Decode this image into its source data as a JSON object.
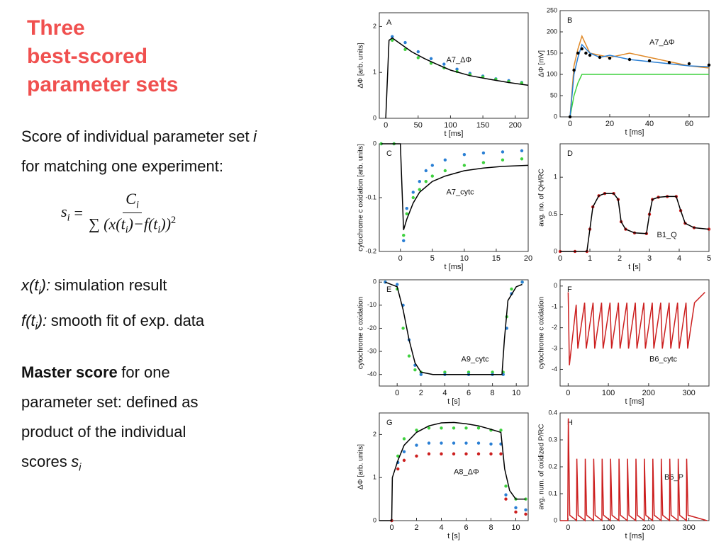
{
  "title_lines": [
    "Three",
    "best-scored",
    "parameter sets"
  ],
  "intro": {
    "line1": "Score of individual parameter set",
    "sym": "i",
    "line2": "for matching one experiment:"
  },
  "formula": {
    "lhs": "s",
    "lhs_sub": "i",
    "eq": "=",
    "num": "C",
    "num_sub": "i",
    "den": [
      "∑ (x(t",
      "i",
      ")−f(t",
      "i",
      "))",
      "2"
    ]
  },
  "defs": [
    {
      "term": "x(t",
      "sub": "i",
      "close": "):",
      "desc": "simulation result"
    },
    {
      "term": "f(t",
      "sub": "i",
      "close": "):",
      "desc": "smooth fit of exp. data"
    }
  ],
  "master": {
    "bold": "Master score",
    "lines": [
      "for one",
      "parameter set: defined as",
      "product of the individual",
      "scores"
    ],
    "sym": "s",
    "sub": "i"
  },
  "chart_data": [
    {
      "type": "line",
      "letter": "A",
      "label": "A7_ΔΦ",
      "xlabel": "t [ms]",
      "ylabel": "ΔΦ [arb. units]",
      "xlim": [
        -10,
        220
      ],
      "xticks": [
        0,
        50,
        100,
        150,
        200
      ],
      "ylim": [
        0,
        2.3
      ],
      "yticks": [
        0,
        1,
        2
      ],
      "series": [
        {
          "color": "#2a7fd4",
          "style": "markers",
          "x": [
            10,
            30,
            50,
            70,
            90,
            110,
            130,
            150,
            170,
            190,
            210
          ],
          "values": [
            1.78,
            1.65,
            1.45,
            1.3,
            1.18,
            1.07,
            0.98,
            0.92,
            0.86,
            0.82,
            0.78
          ]
        },
        {
          "color": "#3fd13f",
          "style": "markers",
          "x": [
            10,
            30,
            50,
            70,
            90,
            110,
            130,
            150,
            170,
            190,
            210
          ],
          "values": [
            1.7,
            1.5,
            1.32,
            1.2,
            1.1,
            1.02,
            0.95,
            0.9,
            0.85,
            0.8,
            0.77
          ]
        },
        {
          "color": "#000000",
          "style": "line",
          "x": [
            0,
            5,
            10,
            20,
            40,
            60,
            80,
            100,
            130,
            160,
            190,
            220
          ],
          "values": [
            0,
            1.7,
            1.75,
            1.65,
            1.45,
            1.3,
            1.17,
            1.05,
            0.93,
            0.85,
            0.78,
            0.72
          ]
        }
      ]
    },
    {
      "type": "line",
      "letter": "B",
      "label": "A7_ΔΦ",
      "xlabel": "t [ms]",
      "ylabel": "ΔΦ [mV]",
      "xlim": [
        -5,
        70
      ],
      "xticks": [
        0,
        20,
        40,
        60
      ],
      "ylim": [
        0,
        250
      ],
      "yticks": [
        0,
        50,
        100,
        150,
        200,
        250
      ],
      "series": [
        {
          "color": "#3fd13f",
          "style": "line",
          "x": [
            0,
            2,
            4,
            6,
            8,
            10,
            15,
            20,
            30,
            40,
            50,
            60,
            70
          ],
          "values": [
            0,
            50,
            80,
            100,
            100,
            100,
            100,
            100,
            100,
            100,
            100,
            100,
            100
          ]
        },
        {
          "color": "#e08a2a",
          "style": "line",
          "x": [
            0,
            2,
            4,
            6,
            8,
            10,
            15,
            20,
            30,
            40,
            50,
            60,
            70
          ],
          "values": [
            0,
            120,
            160,
            190,
            170,
            150,
            145,
            140,
            150,
            140,
            130,
            120,
            115
          ]
        },
        {
          "color": "#2a7fd4",
          "style": "line",
          "x": [
            0,
            2,
            4,
            6,
            8,
            10,
            15,
            20,
            30,
            40,
            50,
            60,
            70
          ],
          "values": [
            0,
            100,
            140,
            170,
            160,
            150,
            140,
            145,
            135,
            130,
            125,
            120,
            118
          ]
        },
        {
          "color": "#000000",
          "style": "markers",
          "x": [
            0,
            2,
            4,
            6,
            8,
            10,
            15,
            20,
            30,
            40,
            50,
            60,
            70
          ],
          "values": [
            0,
            110,
            150,
            160,
            150,
            145,
            140,
            138,
            135,
            132,
            128,
            125,
            122
          ]
        }
      ]
    },
    {
      "type": "line",
      "letter": "C",
      "label": "A7_cytc",
      "xlabel": "t [ms]",
      "ylabel": "cytochrome c oxidation [arb. units]",
      "xlim": [
        -3.3,
        20
      ],
      "xticks": [
        0,
        5,
        10,
        15,
        20
      ],
      "ylim": [
        -0.2,
        0
      ],
      "yticks": [
        0,
        -0.1,
        -0.2
      ],
      "series": [
        {
          "color": "#2a7fd4",
          "style": "markers",
          "x": [
            -3,
            -1,
            0.5,
            1,
            2,
            3,
            4,
            5,
            7,
            10,
            13,
            16,
            19
          ],
          "values": [
            0,
            0,
            -0.18,
            -0.12,
            -0.09,
            -0.07,
            -0.05,
            -0.04,
            -0.03,
            -0.02,
            -0.017,
            -0.015,
            -0.013
          ]
        },
        {
          "color": "#3fd13f",
          "style": "markers",
          "x": [
            -3,
            -1,
            0.5,
            1,
            2,
            3,
            4,
            5,
            7,
            10,
            13,
            16,
            19
          ],
          "values": [
            0,
            0,
            -0.17,
            -0.13,
            -0.1,
            -0.085,
            -0.07,
            -0.06,
            -0.05,
            -0.04,
            -0.035,
            -0.03,
            -0.028
          ]
        },
        {
          "color": "#000000",
          "style": "line",
          "x": [
            -3,
            0,
            0.5,
            1,
            2,
            3,
            5,
            7,
            10,
            13,
            16,
            20
          ],
          "values": [
            0,
            0,
            -0.16,
            -0.14,
            -0.11,
            -0.09,
            -0.07,
            -0.06,
            -0.05,
            -0.045,
            -0.042,
            -0.04
          ]
        }
      ]
    },
    {
      "type": "line",
      "letter": "D",
      "label": "B1_Q",
      "xlabel": "t [s]",
      "ylabel": "avg. no. of QH/RC",
      "xlim": [
        0,
        5
      ],
      "xticks": [
        0,
        1,
        2,
        3,
        4,
        5
      ],
      "ylim": [
        0,
        1.45
      ],
      "yticks": [
        0,
        0.5,
        1
      ],
      "series": [
        {
          "color": "#cc1f1f",
          "style": "markers",
          "x": [
            0,
            0.5,
            0.9,
            1.0,
            1.1,
            1.3,
            1.5,
            1.8,
            1.95,
            2.05,
            2.2,
            2.5,
            2.9,
            3.0,
            3.1,
            3.3,
            3.6,
            3.9,
            4.05,
            4.2,
            4.5,
            5
          ],
          "values": [
            0,
            0,
            0,
            0.3,
            0.6,
            0.75,
            0.78,
            0.78,
            0.7,
            0.4,
            0.3,
            0.25,
            0.24,
            0.5,
            0.7,
            0.73,
            0.74,
            0.74,
            0.55,
            0.38,
            0.32,
            0.3
          ]
        },
        {
          "color": "#000000",
          "style": "line",
          "x": [
            0,
            0.9,
            1.0,
            1.1,
            1.3,
            1.5,
            1.8,
            1.95,
            2.05,
            2.2,
            2.5,
            2.9,
            3.0,
            3.1,
            3.3,
            3.6,
            3.9,
            4.05,
            4.2,
            4.5,
            5
          ],
          "values": [
            0,
            0,
            0.3,
            0.6,
            0.75,
            0.78,
            0.78,
            0.7,
            0.4,
            0.3,
            0.25,
            0.24,
            0.5,
            0.7,
            0.73,
            0.74,
            0.74,
            0.55,
            0.38,
            0.32,
            0.3
          ]
        }
      ]
    },
    {
      "type": "line",
      "letter": "E",
      "label": "A9_cytc",
      "xlabel": "t [s]",
      "ylabel": "cytochrome c oxidation",
      "xlim": [
        -1.5,
        11
      ],
      "xticks": [
        0,
        2,
        4,
        6,
        8,
        10
      ],
      "ylim": [
        -45,
        1
      ],
      "yticks": [
        0,
        -10,
        -20,
        -30,
        -40
      ],
      "series": [
        {
          "color": "#3fd13f",
          "style": "markers",
          "x": [
            -1,
            0,
            0.5,
            1,
            1.5,
            2,
            4,
            6,
            8,
            8.9,
            9.2,
            9.6,
            10.5
          ],
          "values": [
            0,
            -3,
            -20,
            -32,
            -38,
            -39,
            -39,
            -39,
            -39,
            -39,
            -15,
            -3,
            0
          ]
        },
        {
          "color": "#2a7fd4",
          "style": "markers",
          "x": [
            -1,
            0,
            0.5,
            1,
            1.5,
            2,
            4,
            6,
            8,
            8.9,
            9.2,
            9.6,
            10.5
          ],
          "values": [
            0,
            -1,
            -10,
            -25,
            -36,
            -40,
            -40,
            -40,
            -40,
            -40,
            -20,
            -5,
            0
          ]
        },
        {
          "color": "#000000",
          "style": "line",
          "x": [
            -1,
            0,
            0.5,
            1,
            1.5,
            2,
            3,
            5,
            7,
            8.8,
            9,
            9.3,
            10,
            10.5
          ],
          "values": [
            0,
            -2,
            -12,
            -25,
            -35,
            -39,
            -40,
            -40,
            -40,
            -40,
            -25,
            -8,
            -2,
            -1
          ]
        }
      ]
    },
    {
      "type": "line",
      "letter": "F",
      "label": "B6_cytc",
      "xlabel": "t [ms]",
      "ylabel": "cytochrome c oxidation",
      "xlim": [
        -20,
        350
      ],
      "xticks": [
        0,
        100,
        200,
        300
      ],
      "ylim": [
        -4.8,
        0.3
      ],
      "yticks": [
        0,
        -1,
        -2,
        -3,
        -4
      ],
      "series": [
        {
          "color": "#cc1f1f",
          "style": "line",
          "x": [
            0,
            3,
            20,
            24,
            41,
            45,
            62,
            66,
            83,
            87,
            104,
            108,
            125,
            129,
            146,
            150,
            167,
            171,
            188,
            192,
            209,
            213,
            230,
            234,
            251,
            255,
            272,
            276,
            293,
            297,
            314,
            340
          ],
          "values": [
            -0.3,
            -3.8,
            -0.9,
            -3,
            -0.8,
            -3,
            -0.8,
            -3,
            -0.8,
            -3,
            -0.8,
            -3,
            -0.8,
            -3,
            -0.8,
            -3,
            -0.8,
            -3,
            -0.8,
            -3,
            -0.8,
            -3,
            -0.8,
            -3,
            -0.8,
            -3,
            -0.8,
            -3,
            -0.8,
            -3,
            -0.8,
            -0.3
          ]
        }
      ]
    },
    {
      "type": "line",
      "letter": "G",
      "label": "A8_ΔΦ",
      "xlabel": "t [s]",
      "ylabel": "ΔΦ [arb. units]",
      "xlim": [
        -1,
        11
      ],
      "xticks": [
        0,
        2,
        4,
        6,
        8,
        10
      ],
      "ylim": [
        0,
        2.5
      ],
      "yticks": [
        0,
        1,
        2
      ],
      "series": [
        {
          "color": "#3fd13f",
          "style": "markers",
          "x": [
            0,
            0.5,
            1,
            2,
            3,
            4,
            5,
            6,
            7,
            8,
            8.8,
            9.2,
            10,
            10.8
          ],
          "values": [
            0,
            1.5,
            1.9,
            2.1,
            2.15,
            2.15,
            2.15,
            2.15,
            2.15,
            2.1,
            2.1,
            0.8,
            0.5,
            0.5
          ]
        },
        {
          "color": "#2a7fd4",
          "style": "markers",
          "x": [
            0,
            0.5,
            1,
            2,
            3,
            4,
            5,
            6,
            7,
            8,
            8.8,
            9.2,
            10,
            10.8
          ],
          "values": [
            0,
            1.35,
            1.6,
            1.75,
            1.8,
            1.8,
            1.8,
            1.8,
            1.8,
            1.78,
            1.78,
            0.6,
            0.3,
            0.25
          ]
        },
        {
          "color": "#cc1f1f",
          "style": "markers",
          "x": [
            0,
            0.5,
            1,
            2,
            3,
            4,
            5,
            6,
            7,
            8,
            8.8,
            9.2,
            10,
            10.8
          ],
          "values": [
            0,
            1.2,
            1.4,
            1.5,
            1.55,
            1.55,
            1.55,
            1.55,
            1.55,
            1.55,
            1.55,
            0.5,
            0.2,
            0.15
          ]
        },
        {
          "color": "#000000",
          "style": "line",
          "x": [
            -1,
            0,
            0.05,
            0.5,
            1,
            2,
            3,
            4,
            5,
            6,
            7,
            8,
            8.8,
            9.1,
            9.5,
            10,
            10.8
          ],
          "values": [
            0,
            0,
            1,
            1.4,
            1.75,
            2.05,
            2.2,
            2.27,
            2.28,
            2.25,
            2.2,
            2.12,
            2.05,
            1.2,
            0.7,
            0.5,
            0.5
          ]
        }
      ]
    },
    {
      "type": "line",
      "letter": "H",
      "label": "B6_P",
      "xlabel": "t [ms]",
      "ylabel": "avg. num. of oxidized P/RC",
      "xlim": [
        -20,
        350
      ],
      "xticks": [
        0,
        100,
        200,
        300
      ],
      "ylim": [
        0,
        0.4
      ],
      "yticks": [
        0,
        0.1,
        0.2,
        0.3,
        0.4
      ],
      "series": [
        {
          "color": "#cc1f1f",
          "style": "line",
          "x": [
            -20,
            -1,
            0.5,
            4,
            21,
            21.5,
            25,
            42,
            42.5,
            46,
            63,
            63.5,
            67,
            84,
            84.5,
            88,
            105,
            105.5,
            109,
            126,
            126.5,
            130,
            147,
            147.5,
            151,
            168,
            168.5,
            172,
            189,
            189.5,
            193,
            210,
            210.5,
            214,
            231,
            231.5,
            235,
            252,
            252.5,
            256,
            273,
            273.5,
            277,
            294,
            294.5,
            298,
            345
          ],
          "values": [
            0,
            0,
            0.38,
            0.02,
            0,
            0.23,
            0.02,
            0,
            0.23,
            0.02,
            0,
            0.23,
            0.02,
            0,
            0.23,
            0.02,
            0,
            0.23,
            0.02,
            0,
            0.23,
            0.02,
            0,
            0.23,
            0.02,
            0,
            0.23,
            0.02,
            0,
            0.23,
            0.02,
            0,
            0.23,
            0.02,
            0,
            0.23,
            0.02,
            0,
            0.23,
            0.02,
            0,
            0.23,
            0.02,
            0,
            0.23,
            0.02,
            0
          ]
        }
      ]
    }
  ]
}
